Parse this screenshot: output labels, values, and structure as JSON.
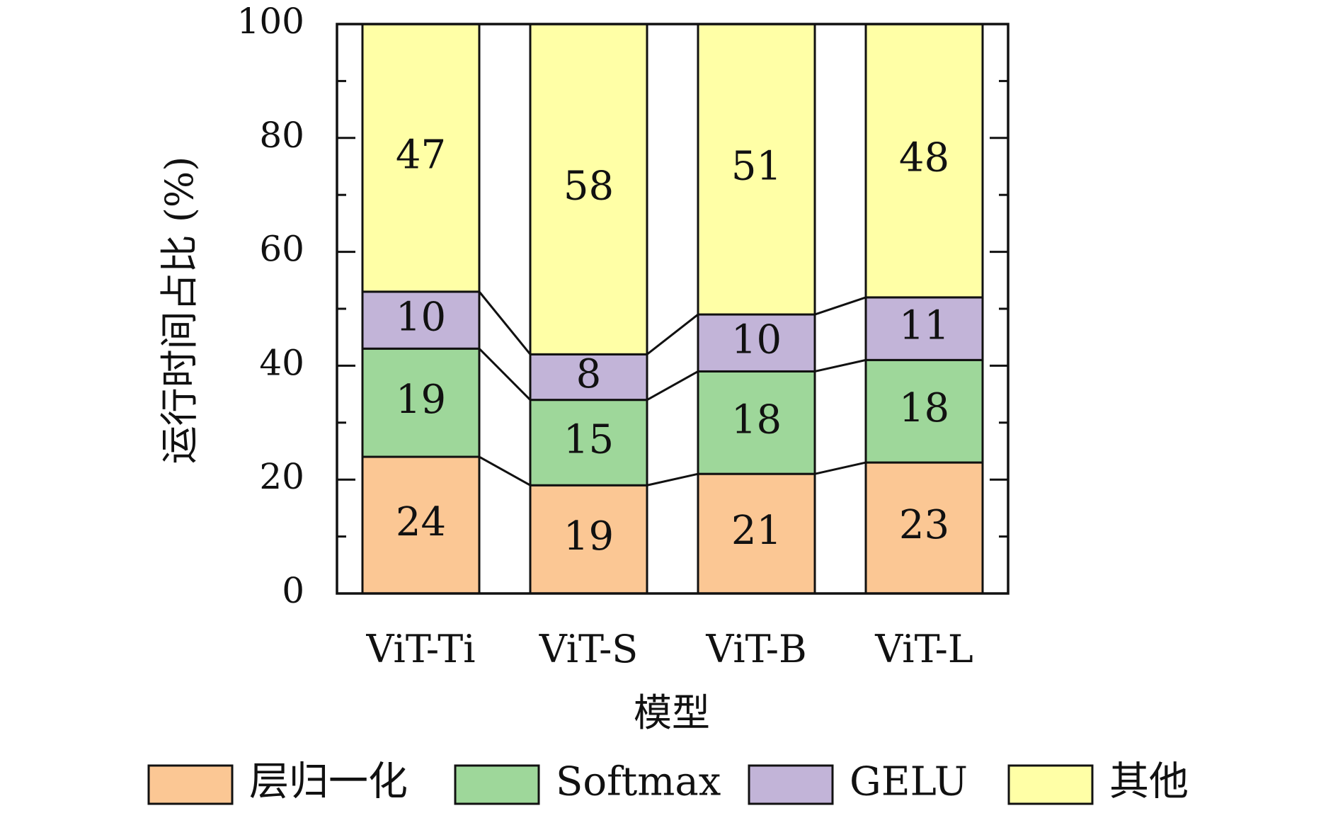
{
  "chart_data": {
    "type": "bar",
    "stacked": true,
    "categories": [
      "ViT-Ti",
      "ViT-S",
      "ViT-B",
      "ViT-L"
    ],
    "series": [
      {
        "name": "层归一化",
        "values": [
          24,
          19,
          21,
          23
        ],
        "color": "#fbc794"
      },
      {
        "name": "Softmax",
        "values": [
          19,
          15,
          18,
          18
        ],
        "color": "#9ed79a"
      },
      {
        "name": "GELU",
        "values": [
          10,
          8,
          10,
          11
        ],
        "color": "#c2b4d8"
      },
      {
        "name": "其他",
        "values": [
          47,
          58,
          51,
          48
        ],
        "color": "#ffffa6"
      }
    ],
    "xlabel": "模型",
    "ylabel": "运行时间占比 (%)",
    "ylim": [
      0,
      100
    ],
    "yticks": [
      0,
      20,
      40,
      60,
      80,
      100
    ],
    "legend_position": "bottom",
    "grid": false,
    "connector_lines": true
  }
}
